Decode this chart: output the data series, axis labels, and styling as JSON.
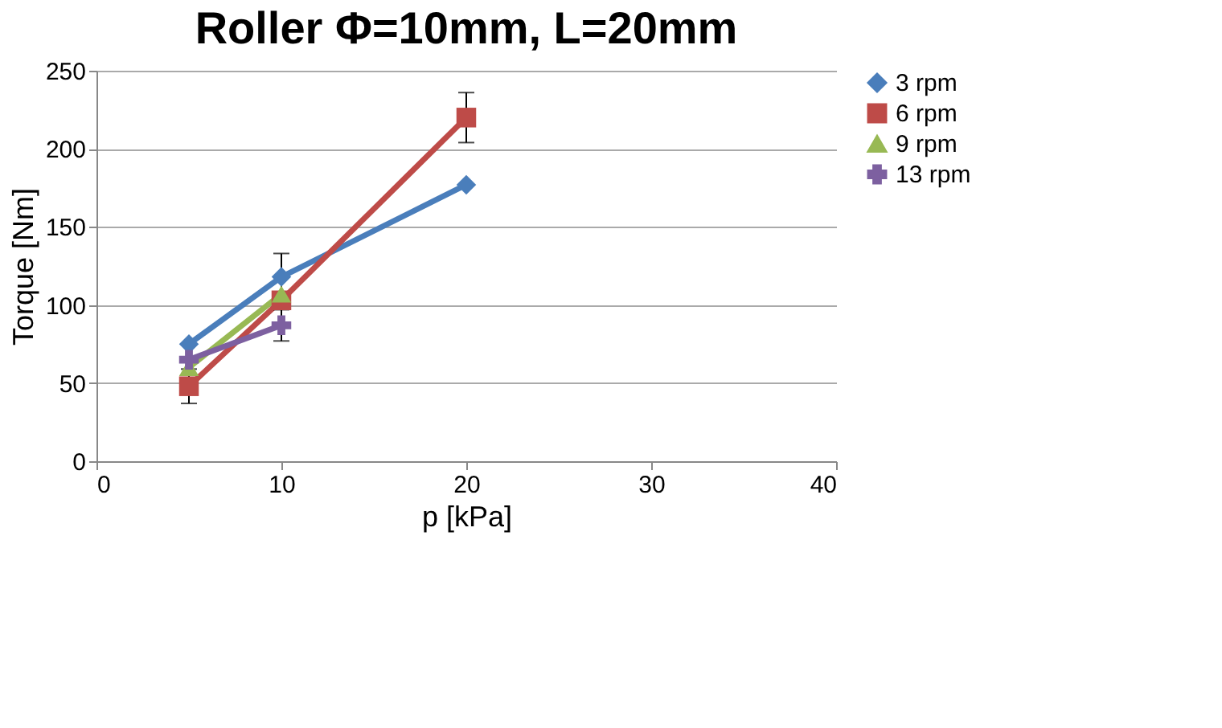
{
  "chart_data": {
    "type": "line",
    "title": "Roller Φ=10mm, L=20mm",
    "xlabel": "p [kPa]",
    "ylabel": "Torque [Nm]",
    "xlim": [
      0,
      40
    ],
    "xticks": [
      0,
      10,
      20,
      30,
      40
    ],
    "ylim": [
      0,
      250
    ],
    "yticks": [
      0,
      50,
      100,
      150,
      200,
      250
    ],
    "grid": "y",
    "legend": "right",
    "series": [
      {
        "name": "3 rpm",
        "color": "#4a7ebb",
        "marker": "diamond",
        "x": [
          5,
          10,
          20
        ],
        "values": [
          75,
          118,
          177
        ],
        "errors": [
          null,
          15,
          null
        ]
      },
      {
        "name": "6 rpm",
        "color": "#be4b48",
        "marker": "square",
        "x": [
          5,
          10,
          20
        ],
        "values": [
          48,
          103,
          220
        ],
        "errors": [
          11,
          null,
          16
        ]
      },
      {
        "name": "9 rpm",
        "color": "#98b954",
        "marker": "triangle",
        "x": [
          5,
          10
        ],
        "values": [
          60,
          107
        ],
        "errors": [
          null,
          null
        ]
      },
      {
        "name": "13 rpm",
        "color": "#7d60a0",
        "marker": "cross",
        "x": [
          5,
          10
        ],
        "values": [
          65,
          87
        ],
        "errors": [
          null,
          10
        ]
      }
    ]
  }
}
